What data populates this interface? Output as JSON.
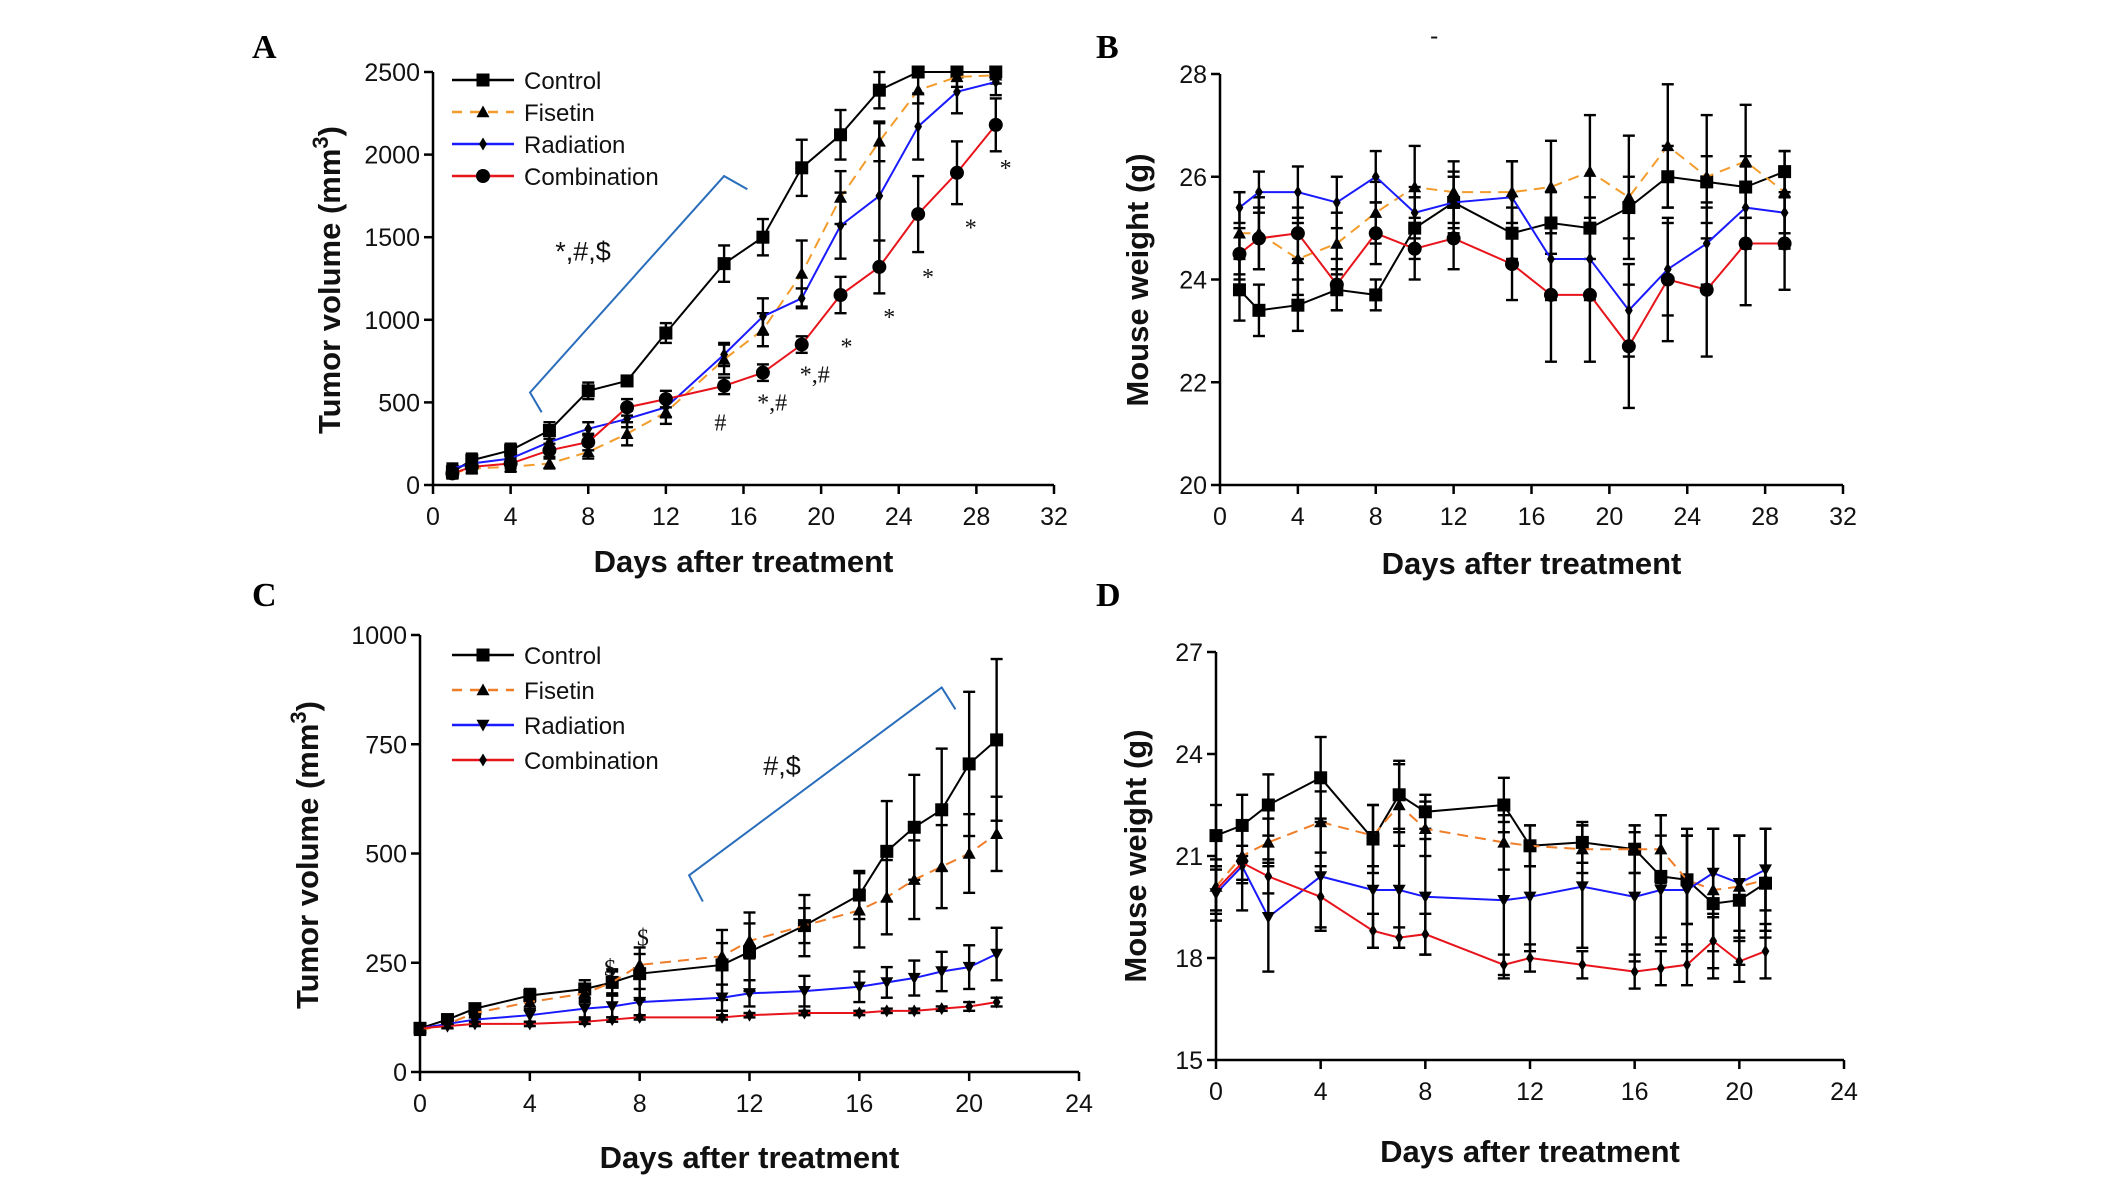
{
  "figure": {
    "stray_mark": "-"
  },
  "chart_data": [
    {
      "panel": "A",
      "type": "line",
      "title": "",
      "xlabel": "Days after treatment",
      "ylabel": "Tumor volume (mm",
      "ylabel_superscript": "3",
      "ylabel_close": ")",
      "xlim": [
        0,
        32
      ],
      "ylim": [
        0,
        2500
      ],
      "xticks": [
        0,
        4,
        8,
        12,
        16,
        20,
        24,
        28,
        32
      ],
      "yticks": [
        0,
        500,
        1000,
        1500,
        2000,
        2500
      ],
      "grid": false,
      "legend": "top-left",
      "x": [
        1,
        2,
        4,
        6,
        8,
        10,
        12,
        15,
        17,
        19,
        21,
        23,
        25,
        27,
        29
      ],
      "series": [
        {
          "name": "Control",
          "color": "#000000",
          "dash": false,
          "marker": "square",
          "values": [
            80,
            150,
            210,
            330,
            570,
            630,
            920,
            1340,
            1500,
            1920,
            2120,
            2390,
            2500,
            2500,
            2500
          ],
          "errors": [
            40,
            40,
            40,
            50,
            50,
            30,
            60,
            110,
            110,
            170,
            150,
            110,
            0,
            0,
            0
          ]
        },
        {
          "name": "Fisetin",
          "color": "#f39c2b",
          "dash": true,
          "marker": "triangle",
          "values": [
            70,
            100,
            110,
            130,
            200,
            310,
            440,
            760,
            940,
            1280,
            1740,
            2080,
            2390,
            2470,
            2480
          ],
          "errors": [
            30,
            30,
            30,
            30,
            40,
            70,
            70,
            90,
            100,
            200,
            160,
            120,
            80,
            60,
            50
          ]
        },
        {
          "name": "Radiation",
          "color": "#1a1aff",
          "dash": false,
          "marker": "diamond",
          "values": [
            100,
            130,
            160,
            260,
            340,
            400,
            470,
            790,
            1020,
            1130,
            1570,
            1750,
            2170,
            2380,
            2440
          ],
          "errors": [
            30,
            30,
            30,
            40,
            40,
            50,
            60,
            70,
            110,
            60,
            200,
            440,
            200,
            130,
            80
          ]
        },
        {
          "name": "Combination",
          "color": "#e8141b",
          "dash": false,
          "marker": "circle",
          "values": [
            70,
            110,
            130,
            210,
            260,
            470,
            520,
            600,
            680,
            850,
            1150,
            1320,
            1640,
            1890,
            2180
          ],
          "errors": [
            30,
            30,
            30,
            40,
            50,
            50,
            50,
            50,
            50,
            50,
            110,
            160,
            230,
            190,
            160
          ]
        }
      ],
      "annotations": [
        {
          "text": "*,#,$",
          "x": 6.3,
          "y": 1360,
          "size": "big"
        },
        {
          "text": "#",
          "x": 14.5,
          "y": 330
        },
        {
          "text": "*,#",
          "x": 16.7,
          "y": 450
        },
        {
          "text": "*,#",
          "x": 18.9,
          "y": 620
        },
        {
          "text": "*",
          "x": 21.0,
          "y": 790
        },
        {
          "text": "*",
          "x": 23.2,
          "y": 970
        },
        {
          "text": "*",
          "x": 25.2,
          "y": 1210
        },
        {
          "text": "*",
          "x": 27.4,
          "y": 1510
        },
        {
          "text": "*",
          "x": 29.2,
          "y": 1870
        }
      ],
      "bracket": [
        [
          5.6,
          440
        ],
        [
          5.0,
          560
        ],
        [
          15.0,
          1870
        ],
        [
          16.2,
          1790
        ]
      ]
    },
    {
      "panel": "B",
      "type": "line",
      "title": "",
      "xlabel": "Days after treatment",
      "ylabel": "Mouse weight (g)",
      "xlim": [
        0,
        32
      ],
      "ylim": [
        20,
        28
      ],
      "xticks": [
        0,
        4,
        8,
        12,
        16,
        20,
        24,
        28,
        32
      ],
      "yticks": [
        20,
        22,
        24,
        26,
        28
      ],
      "grid": false,
      "legend": "none",
      "x": [
        1,
        2,
        4,
        6,
        8,
        10,
        12,
        15,
        17,
        19,
        21,
        23,
        25,
        27,
        29
      ],
      "series": [
        {
          "name": "Control",
          "color": "#000000",
          "dash": false,
          "marker": "square",
          "values": [
            23.8,
            23.4,
            23.5,
            23.8,
            23.7,
            25.0,
            25.5,
            24.9,
            25.1,
            25.0,
            25.4,
            26.0,
            25.9,
            25.8,
            26.1
          ],
          "errors": [
            0.6,
            0.5,
            0.5,
            0.4,
            0.3,
            0.6,
            0.6,
            0.5,
            0.6,
            0.6,
            0.6,
            0.6,
            0.5,
            0.6,
            0.4
          ]
        },
        {
          "name": "Fisetin",
          "color": "#f39c2b",
          "dash": true,
          "marker": "triangle",
          "values": [
            24.9,
            24.9,
            24.4,
            24.7,
            25.3,
            25.8,
            25.7,
            25.7,
            25.8,
            26.1,
            25.6,
            26.6,
            26.0,
            26.3,
            25.7
          ],
          "errors": [
            0.8,
            0.7,
            0.7,
            0.6,
            0.6,
            0.8,
            0.6,
            0.6,
            0.9,
            1.1,
            1.2,
            1.2,
            1.2,
            1.1,
            0.8
          ]
        },
        {
          "name": "Radiation",
          "color": "#1a1aff",
          "dash": false,
          "marker": "diamond",
          "values": [
            25.4,
            25.7,
            25.7,
            25.5,
            26.0,
            25.3,
            25.5,
            25.6,
            24.4,
            24.4,
            23.4,
            24.2,
            24.7,
            25.4,
            25.3
          ],
          "errors": [
            0.3,
            0.4,
            0.5,
            0.5,
            0.5,
            0.5,
            0.5,
            0.7,
            0.8,
            0.8,
            0.9,
            0.9,
            0.8,
            0.8,
            0.7
          ]
        },
        {
          "name": "Combination",
          "color": "#e8141b",
          "dash": false,
          "marker": "circle",
          "values": [
            24.5,
            24.8,
            24.9,
            23.9,
            24.9,
            24.6,
            24.8,
            24.3,
            23.7,
            23.7,
            22.7,
            24.0,
            23.8,
            24.7,
            24.7
          ],
          "errors": [
            0.5,
            0.6,
            0.5,
            0.5,
            0.6,
            0.6,
            0.6,
            0.7,
            1.3,
            1.3,
            1.2,
            1.2,
            1.3,
            1.2,
            0.9
          ]
        }
      ]
    },
    {
      "panel": "C",
      "type": "line",
      "title": "",
      "xlabel": "Days after treatment",
      "ylabel": "Tumor volume (mm",
      "ylabel_superscript": "3",
      "ylabel_close": ")",
      "xlim": [
        0,
        24
      ],
      "ylim": [
        0,
        1000
      ],
      "xticks": [
        0,
        4,
        8,
        12,
        16,
        20,
        24
      ],
      "yticks": [
        0,
        250,
        500,
        750,
        1000
      ],
      "grid": false,
      "legend": "top-left",
      "x": [
        0,
        1,
        2,
        4,
        6,
        7,
        8,
        11,
        12,
        14,
        16,
        17,
        18,
        19,
        20,
        21
      ],
      "series": [
        {
          "name": "Control",
          "color": "#000000",
          "dash": false,
          "marker": "square",
          "values": [
            100,
            120,
            145,
            175,
            190,
            205,
            225,
            245,
            275,
            335,
            405,
            505,
            560,
            600,
            705,
            760
          ],
          "errors": [
            10,
            10,
            10,
            15,
            20,
            30,
            60,
            80,
            90,
            70,
            55,
            115,
            120,
            140,
            165,
            185
          ]
        },
        {
          "name": "Fisetin",
          "color": "#f07d28",
          "dash": true,
          "marker": "triangle",
          "values": [
            95,
            110,
            135,
            160,
            180,
            205,
            245,
            265,
            300,
            335,
            370,
            400,
            440,
            470,
            500,
            545
          ],
          "errors": [
            10,
            10,
            10,
            15,
            20,
            25,
            25,
            30,
            40,
            40,
            85,
            85,
            90,
            95,
            90,
            85
          ]
        },
        {
          "name": "Radiation",
          "color": "#1a1aff",
          "dash": false,
          "marker": "down-triangle",
          "values": [
            100,
            110,
            120,
            130,
            145,
            150,
            160,
            170,
            180,
            185,
            195,
            205,
            215,
            230,
            240,
            270
          ],
          "errors": [
            10,
            10,
            10,
            15,
            20,
            25,
            30,
            30,
            30,
            35,
            35,
            35,
            40,
            45,
            50,
            60
          ]
        },
        {
          "name": "Combination",
          "color": "#e8141b",
          "dash": false,
          "marker": "diamond",
          "values": [
            100,
            105,
            110,
            110,
            115,
            120,
            125,
            125,
            130,
            135,
            135,
            140,
            140,
            145,
            150,
            160
          ],
          "errors": [
            5,
            5,
            5,
            5,
            5,
            5,
            5,
            5,
            5,
            5,
            5,
            5,
            5,
            5,
            10,
            10
          ]
        }
      ],
      "annotations": [
        {
          "text": "$",
          "x": 6.7,
          "y": 220
        },
        {
          "text": "$",
          "x": 7.9,
          "y": 290
        },
        {
          "text": "#,$",
          "x": 12.5,
          "y": 680,
          "size": "big"
        }
      ],
      "bracket": [
        [
          10.3,
          390
        ],
        [
          9.8,
          450
        ],
        [
          19.0,
          880
        ],
        [
          19.5,
          830
        ]
      ]
    },
    {
      "panel": "D",
      "type": "line",
      "title": "",
      "xlabel": "Days after treatment",
      "ylabel": "Mouse weight (g)",
      "xlim": [
        0,
        24
      ],
      "ylim": [
        15,
        27
      ],
      "xticks": [
        0,
        4,
        8,
        12,
        16,
        20,
        24
      ],
      "yticks": [
        15,
        18,
        21,
        24,
        27
      ],
      "grid": false,
      "legend": "none",
      "x": [
        0,
        1,
        2,
        4,
        6,
        7,
        8,
        11,
        12,
        14,
        16,
        17,
        18,
        19,
        20,
        21
      ],
      "series": [
        {
          "name": "Control",
          "color": "#000000",
          "dash": false,
          "marker": "square",
          "values": [
            21.6,
            21.9,
            22.5,
            23.3,
            21.5,
            22.8,
            22.3,
            22.5,
            21.3,
            21.4,
            21.2,
            20.4,
            20.3,
            19.6,
            19.7,
            20.2
          ],
          "errors": [
            0.9,
            0.9,
            0.9,
            1.2,
            1.0,
            1.0,
            0.5,
            0.8,
            0.6,
            0.6,
            0.7,
            1.8,
            1.3,
            2.2,
            1.9,
            1.6
          ]
        },
        {
          "name": "Fisetin",
          "color": "#f07d28",
          "dash": true,
          "marker": "triangle",
          "values": [
            20.1,
            21.0,
            21.4,
            22.0,
            21.6,
            22.5,
            21.8,
            21.4,
            21.3,
            21.2,
            21.2,
            21.2,
            20.3,
            20.0,
            20.1,
            20.3
          ],
          "errors": [
            0.8,
            0.8,
            0.7,
            0.9,
            0.9,
            1.2,
            0.8,
            0.8,
            0.6,
            0.7,
            0.7,
            1.0,
            1.3,
            1.8,
            1.5,
            1.5
          ]
        },
        {
          "name": "Radiation",
          "color": "#1a1aff",
          "dash": false,
          "marker": "down-triangle",
          "values": [
            19.9,
            20.7,
            19.2,
            20.4,
            20.0,
            20.0,
            19.8,
            19.7,
            19.8,
            20.1,
            19.8,
            20.0,
            20.0,
            20.5,
            20.2,
            20.6
          ],
          "errors": [
            0.8,
            1.3,
            1.6,
            1.6,
            1.7,
            1.7,
            1.7,
            2.3,
            1.6,
            1.8,
            1.9,
            1.6,
            1.8,
            1.3,
            1.4,
            1.2
          ]
        },
        {
          "name": "Combination",
          "color": "#e8141b",
          "dash": false,
          "marker": "diamond",
          "values": [
            20.0,
            20.8,
            20.4,
            19.8,
            18.8,
            18.6,
            18.7,
            17.8,
            18.0,
            17.8,
            17.6,
            17.7,
            17.8,
            18.5,
            17.9,
            18.2
          ],
          "errors": [
            0.6,
            0.5,
            0.5,
            0.9,
            0.5,
            0.3,
            0.6,
            0.3,
            0.4,
            0.4,
            0.5,
            0.5,
            0.6,
            0.8,
            0.6,
            0.8
          ]
        }
      ]
    }
  ]
}
